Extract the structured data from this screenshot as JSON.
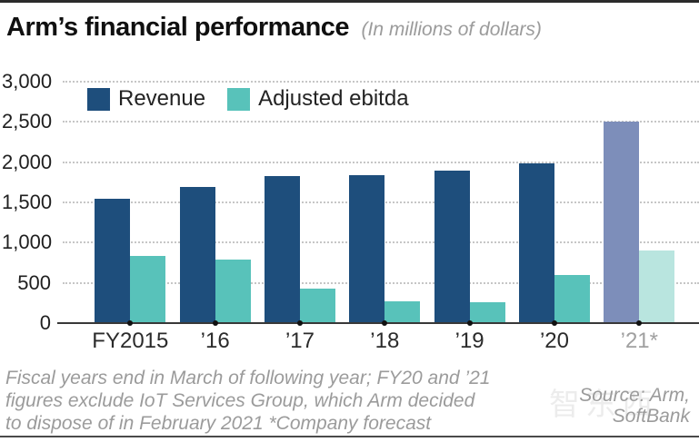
{
  "header": {
    "title": "Arm’s financial performance",
    "subtitle": "(In millions of dollars)"
  },
  "chart_data": {
    "type": "bar",
    "title": "Arm’s financial performance",
    "subtitle": "(In millions of dollars)",
    "categories": [
      "FY2015",
      "’16",
      "’17",
      "’18",
      "’19",
      "’20",
      "’21*"
    ],
    "series": [
      {
        "name": "Revenue",
        "values": [
          1550,
          1690,
          1830,
          1840,
          1900,
          1980,
          2500
        ],
        "color": "#1e4e7c",
        "forecast_color": "#7d8eba"
      },
      {
        "name": "Adjusted ebitda",
        "values": [
          830,
          790,
          430,
          270,
          260,
          600,
          900
        ],
        "color": "#58c2ba",
        "forecast_color": "#b9e5df"
      }
    ],
    "forecast_index": 6,
    "ylim": [
      0,
      3000
    ],
    "ytick_interval": 500,
    "yticks": [
      "3,000",
      "2,500",
      "2,000",
      "1,500",
      "1,000",
      "500",
      "0"
    ],
    "grid": "horizontal dotted gridlines, solid zero baseline",
    "legend_position": "top-left inside plot"
  },
  "footnote": {
    "lines": [
      "Fiscal years end in March of following year; FY20 and ’21",
      "figures exclude IoT Services Group, which Arm decided",
      "to dispose of in February 2021  *Company forecast"
    ]
  },
  "source": {
    "lines": [
      "Source: Arm,",
      "SoftBank"
    ]
  },
  "watermark": "智东西"
}
